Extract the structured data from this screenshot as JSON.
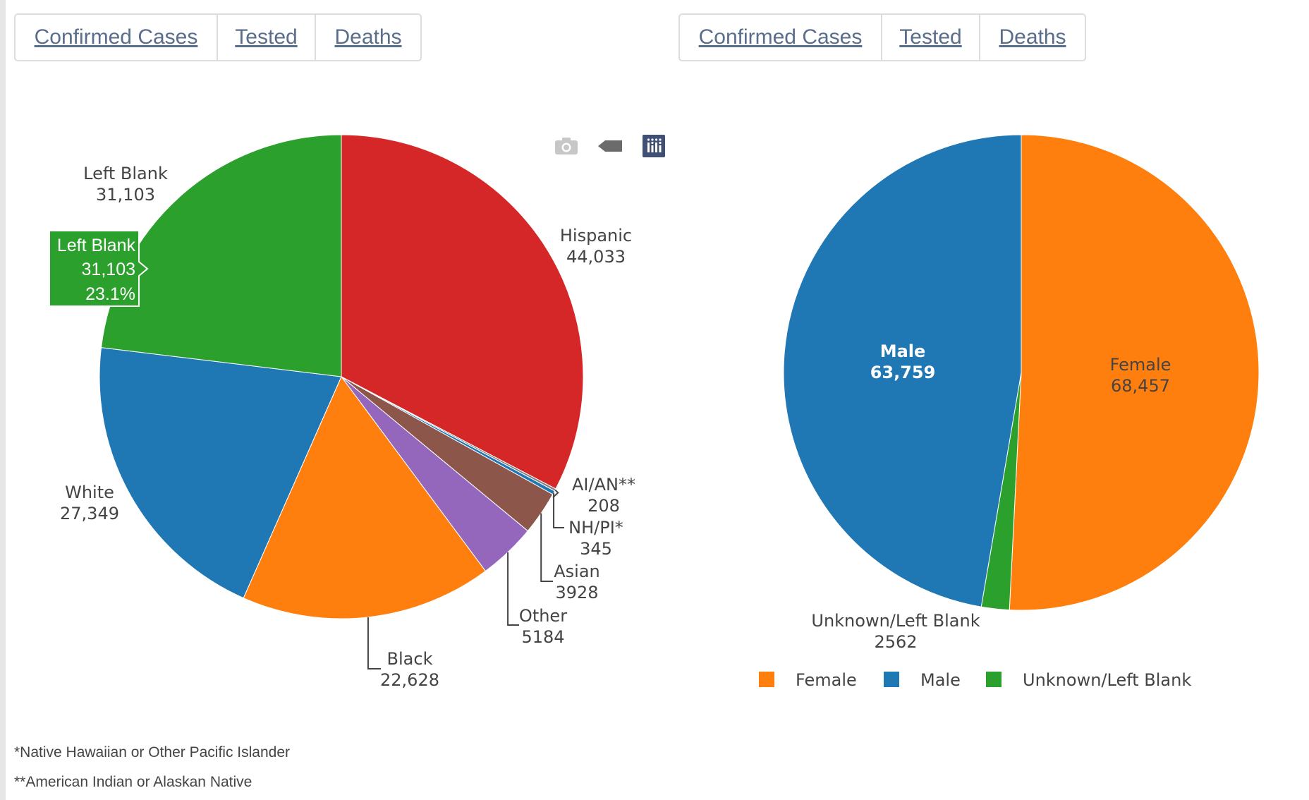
{
  "tabs_left": [
    {
      "label": "Confirmed Cases"
    },
    {
      "label": "Tested"
    },
    {
      "label": "Deaths"
    }
  ],
  "tabs_right": [
    {
      "label": "Confirmed Cases"
    },
    {
      "label": "Tested"
    },
    {
      "label": "Deaths"
    }
  ],
  "modebar": [
    {
      "name": "camera-icon"
    },
    {
      "name": "tag-icon"
    },
    {
      "name": "plotly-logo-icon"
    }
  ],
  "footnotes": [
    "*Native Hawaiian or Other Pacific Islander",
    "**American Indian or Alaskan Native"
  ],
  "chart_data": [
    {
      "type": "pie",
      "direction": "clockwise",
      "slices": [
        {
          "label": "Hispanic",
          "value": 44033,
          "value_text": "44,033",
          "color": "#d62728"
        },
        {
          "label": "AI/AN**",
          "value": 208,
          "value_text": "208",
          "color": "#7f7f7f"
        },
        {
          "label": "NH/PI*",
          "value": 345,
          "value_text": "345",
          "color": "#1f77b4"
        },
        {
          "label": "Asian",
          "value": 3928,
          "value_text": "3928",
          "color": "#8c564b"
        },
        {
          "label": "Other",
          "value": 5184,
          "value_text": "5184",
          "color": "#9467bd"
        },
        {
          "label": "Black",
          "value": 22628,
          "value_text": "22,628",
          "color": "#ff7f0e"
        },
        {
          "label": "White",
          "value": 27349,
          "value_text": "27,349",
          "color": "#1f77b4"
        },
        {
          "label": "Left Blank",
          "value": 31103,
          "value_text": "31,103",
          "color": "#2ca02c"
        }
      ],
      "hover": {
        "label": "Left Blank",
        "value_text": "31,103",
        "percent_text": "23.1%",
        "color": "#2ca02c"
      }
    },
    {
      "type": "pie",
      "direction": "clockwise",
      "slices": [
        {
          "label": "Female",
          "value": 68457,
          "value_text": "68,457",
          "color": "#ff7f0e"
        },
        {
          "label": "Unknown/Left Blank",
          "value": 2562,
          "value_text": "2562",
          "color": "#2ca02c"
        },
        {
          "label": "Male",
          "value": 63759,
          "value_text": "63,759",
          "color": "#1f77b4"
        }
      ],
      "legend": {
        "placement": "bottom",
        "entries": [
          {
            "label": "Female",
            "color": "#ff7f0e"
          },
          {
            "label": "Male",
            "color": "#1f77b4"
          },
          {
            "label": "Unknown/Left Blank",
            "color": "#2ca02c"
          }
        ]
      }
    }
  ]
}
